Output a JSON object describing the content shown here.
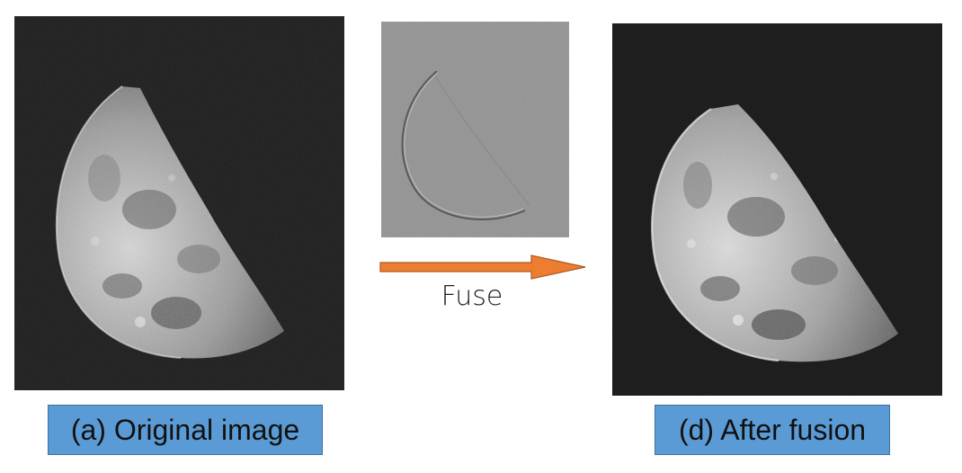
{
  "panels": {
    "original": {
      "caption": "(a) Original image",
      "subject": "moon-photo"
    },
    "detail": {
      "subject": "high-frequency-detail-layer"
    },
    "fused": {
      "caption": "(d) After fusion",
      "subject": "moon-photo-enhanced"
    }
  },
  "arrow": {
    "label": "Fuse",
    "color": "#ed7d31"
  },
  "colors": {
    "caption_background": "#5b9bd5",
    "caption_border": "#41719c",
    "arrow_fill": "#ed7d31"
  }
}
